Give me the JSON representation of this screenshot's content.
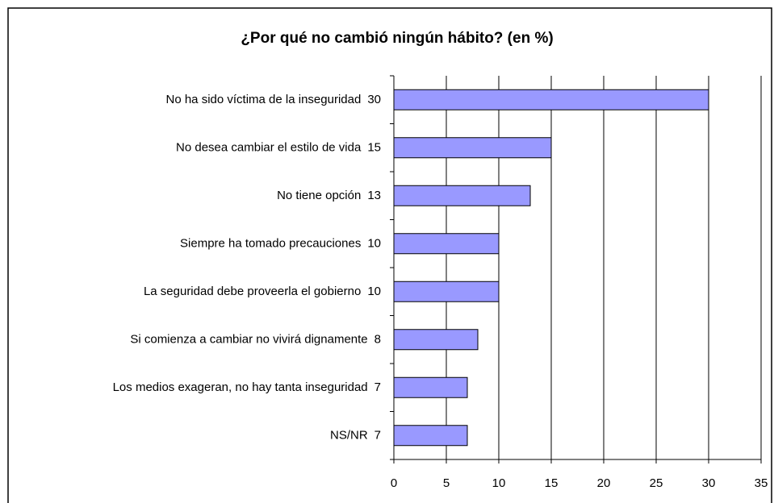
{
  "chart_data": {
    "type": "bar",
    "orientation": "horizontal",
    "title": "¿Por qué no cambió ningún hábito? (en %)",
    "categories": [
      "No ha sido víctima de la inseguridad",
      "No desea cambiar el estilo de vida",
      "No tiene opción",
      "Siempre ha tomado precauciones",
      "La seguridad debe proveerla el gobierno",
      "Si comienza a cambiar no vivirá dignamente",
      "Los medios exageran, no hay tanta inseguridad",
      "NS/NR"
    ],
    "values": [
      30,
      15,
      13,
      10,
      10,
      8,
      7,
      7
    ],
    "color": "#9999ff",
    "xlim": [
      0,
      35
    ],
    "xticks": [
      0,
      5,
      10,
      15,
      20,
      25,
      30,
      35
    ],
    "grid": true
  }
}
